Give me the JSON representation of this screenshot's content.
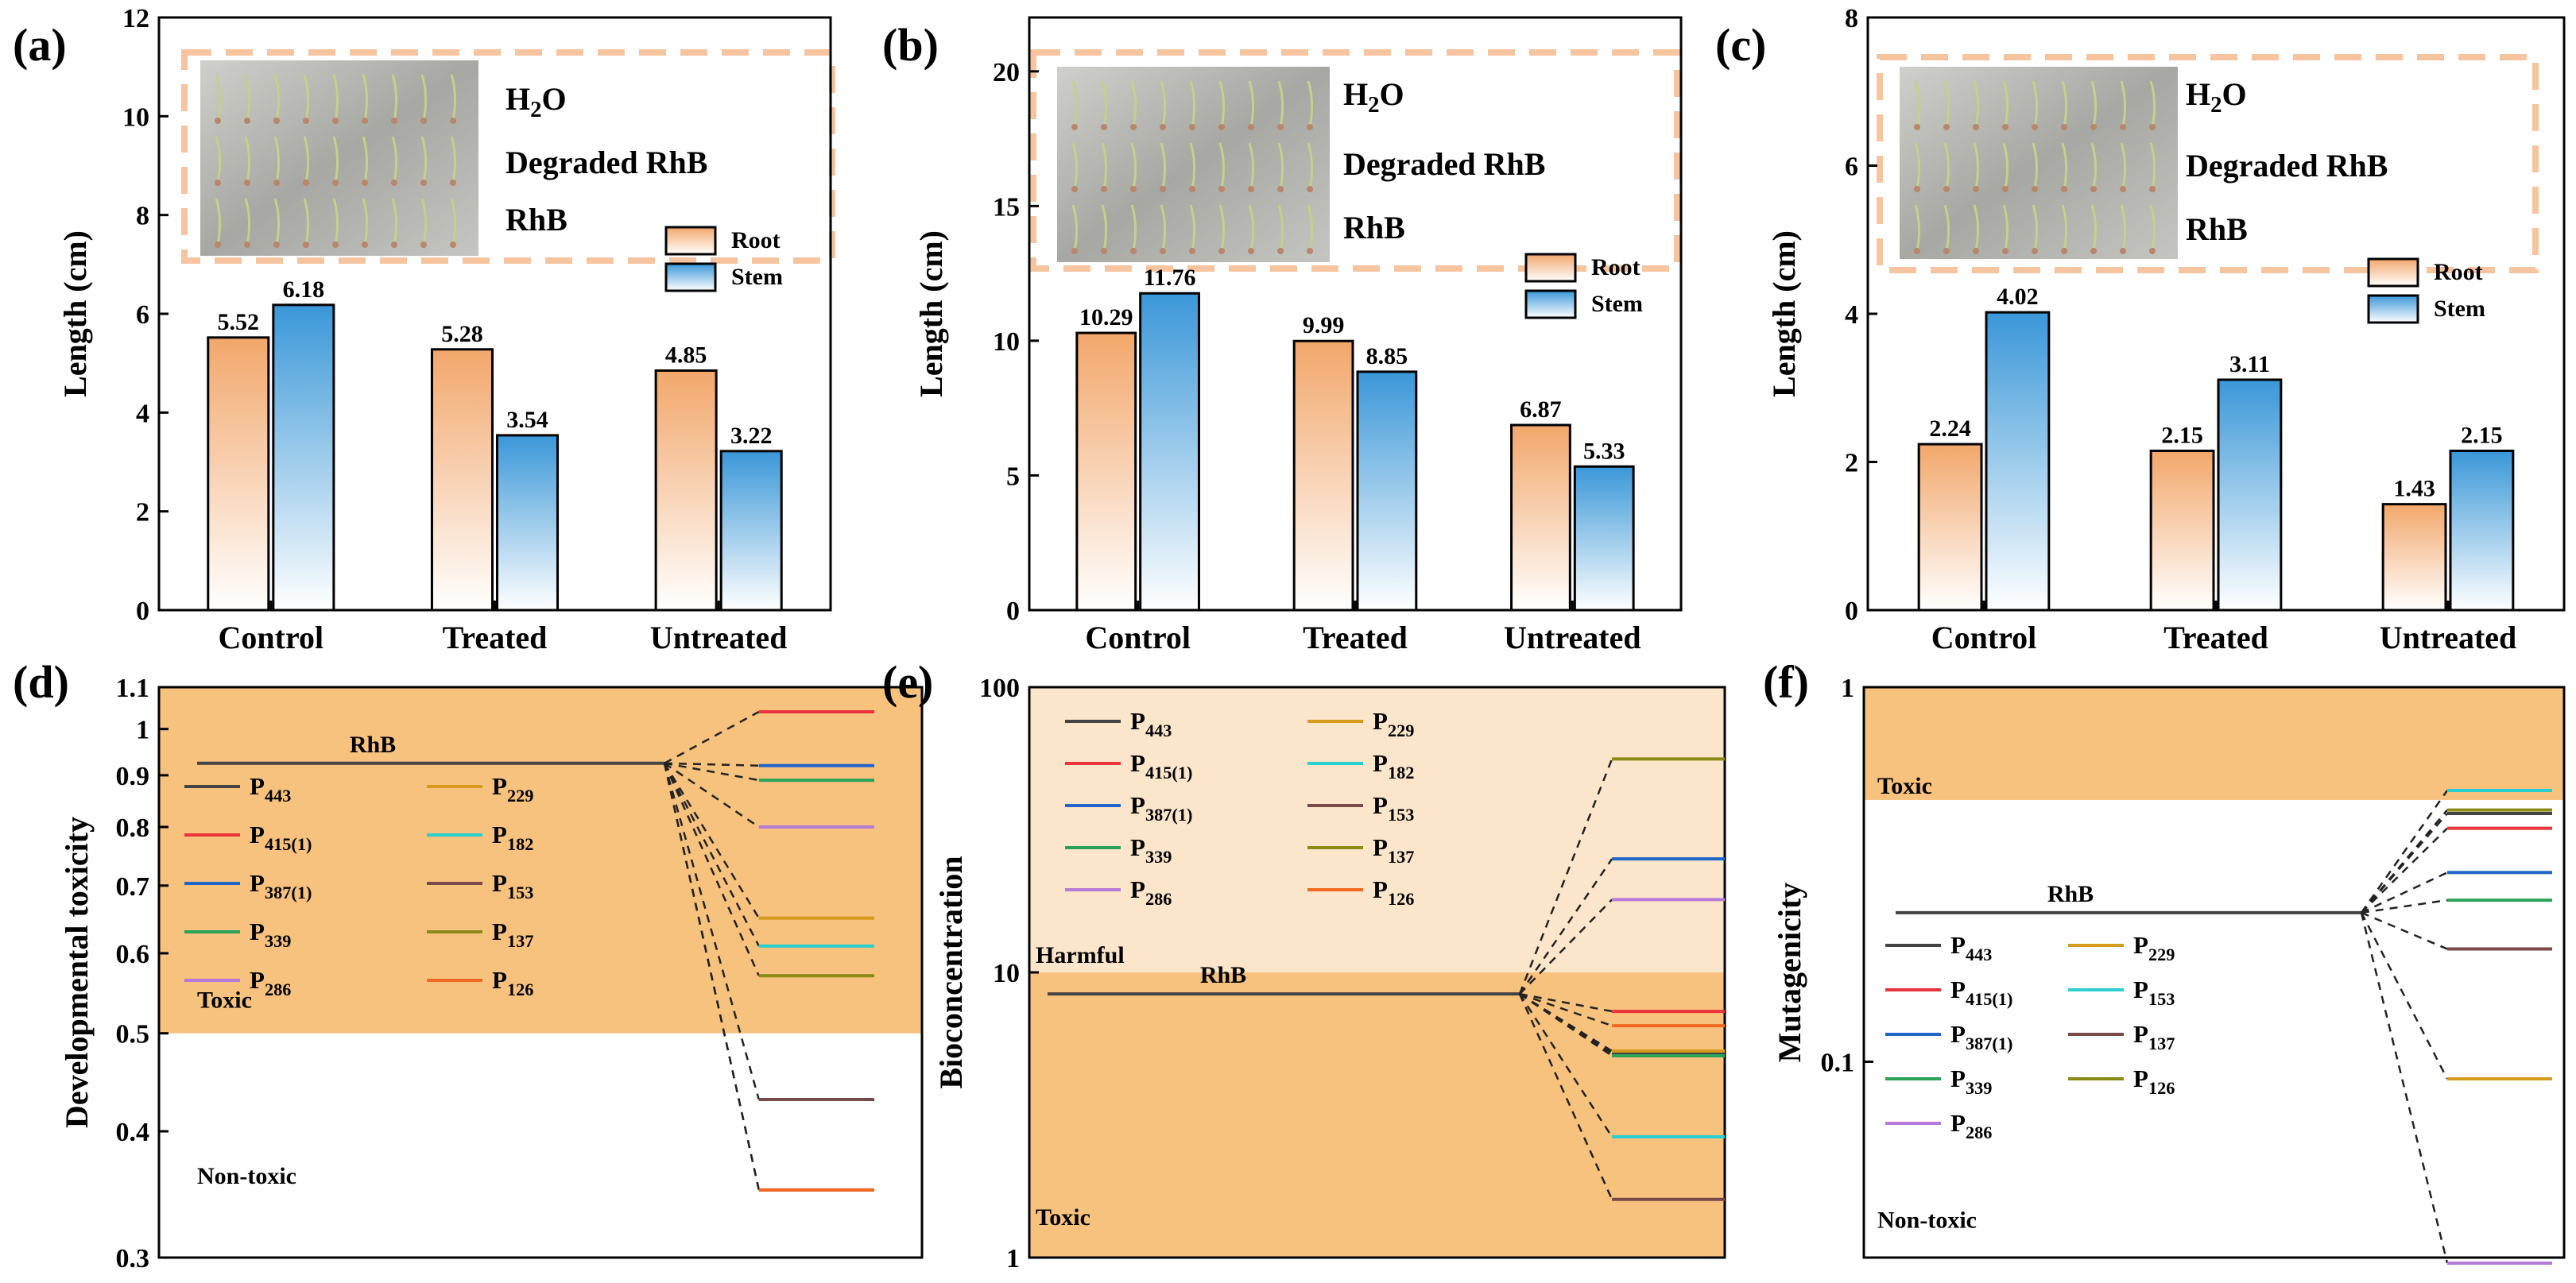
{
  "colors": {
    "root_top": "#f2a76b",
    "root_bottom": "#ffffff",
    "stem_top": "#3a97d8",
    "stem_bottom": "#ffffff",
    "toxic_zone": "#f7c17e",
    "harmful_zone": "#fbe6cb",
    "inset_border": "#f7c4a0"
  },
  "chart_data": [
    {
      "id": "a",
      "panel_label": "(a)",
      "type": "bar",
      "categories": [
        "Control",
        "Treated",
        "Untreated"
      ],
      "series": [
        {
          "name": "Root",
          "values": [
            5.52,
            5.28,
            4.85
          ]
        },
        {
          "name": "Stem",
          "values": [
            6.18,
            3.54,
            3.22
          ]
        }
      ],
      "value_labels": {
        "Root": [
          "5.52",
          "5.28",
          "4.85"
        ],
        "Stem": [
          "6.18",
          "3.54",
          "3.22"
        ]
      },
      "ylabel": "Length (cm)",
      "ylim": [
        0,
        12
      ],
      "yticks": [
        0,
        2,
        4,
        6,
        8,
        10,
        12
      ],
      "ytick_labels": [
        "0",
        "2",
        "4",
        "6",
        "8",
        "10",
        "12"
      ],
      "legend": {
        "position": "right",
        "entries": [
          "Root",
          "Stem"
        ]
      },
      "inset": {
        "labels": [
          "Degraded RhB",
          "RhB"
        ],
        "h2o": {
          "base": "H",
          "sub": "2",
          "tail": "O"
        },
        "photo": "seedling-photo"
      }
    },
    {
      "id": "b",
      "panel_label": "(b)",
      "type": "bar",
      "categories": [
        "Control",
        "Treated",
        "Untreated"
      ],
      "series": [
        {
          "name": "Root",
          "values": [
            10.29,
            9.99,
            6.87
          ]
        },
        {
          "name": "Stem",
          "values": [
            11.76,
            8.85,
            5.33
          ]
        }
      ],
      "value_labels": {
        "Root": [
          "10.29",
          "9.99",
          "6.87"
        ],
        "Stem": [
          "11.76",
          "8.85",
          "5.33"
        ]
      },
      "ylabel": "Length (cm)",
      "ylim": [
        0,
        22
      ],
      "yticks": [
        0,
        5,
        10,
        15,
        20
      ],
      "ytick_labels": [
        "0",
        "5",
        "10",
        "15",
        "20"
      ],
      "legend": {
        "position": "right",
        "entries": [
          "Root",
          "Stem"
        ]
      },
      "inset": {
        "labels": [
          "Degraded RhB",
          "RhB"
        ],
        "h2o": {
          "base": "H",
          "sub": "2",
          "tail": "O"
        },
        "photo": "seedling-photo"
      }
    },
    {
      "id": "c",
      "panel_label": "(c)",
      "type": "bar",
      "categories": [
        "Control",
        "Treated",
        "Untreated"
      ],
      "series": [
        {
          "name": "Root",
          "values": [
            2.24,
            2.15,
            1.43
          ]
        },
        {
          "name": "Stem",
          "values": [
            4.02,
            3.11,
            2.15
          ]
        }
      ],
      "value_labels": {
        "Root": [
          "2.24",
          "2.15",
          "1.43"
        ],
        "Stem": [
          "4.02",
          "3.11",
          "2.15"
        ]
      },
      "ylabel": "Length (cm)",
      "ylim": [
        0,
        8
      ],
      "yticks": [
        0,
        2,
        4,
        6,
        8
      ],
      "ytick_labels": [
        "0",
        "2",
        "4",
        "6",
        "8"
      ],
      "legend": {
        "position": "right",
        "entries": [
          "Root",
          "Stem"
        ]
      },
      "inset": {
        "labels": [
          "Degraded RhB",
          "RhB"
        ],
        "h2o": {
          "base": "H",
          "sub": "2",
          "tail": "O"
        },
        "photo": "seedling-photo"
      }
    },
    {
      "id": "d",
      "panel_label": "(d)",
      "type": "line",
      "yscale": "log",
      "ylabel": "Developmental toxicity",
      "ylim": [
        0.3,
        1.1
      ],
      "yticks": [
        0.3,
        0.4,
        0.5,
        0.6,
        0.7,
        0.8,
        0.9,
        1.0,
        1.1
      ],
      "ytick_labels": [
        "0.3",
        "0.4",
        "0.5",
        "0.6",
        "0.7",
        "0.8",
        "0.9",
        "1",
        "1.1"
      ],
      "zones": [
        {
          "label": "Toxic",
          "from": 0.5,
          "to": 1.1,
          "color": "toxic_zone"
        }
      ],
      "zone_labels": [
        "Toxic",
        "Non-toxic"
      ],
      "zone_label_values": [
        0.53,
        0.355
      ],
      "reference": {
        "label": "RhB",
        "value": 0.925
      },
      "products": [
        {
          "base": "P",
          "sub": "443",
          "value": 0.35,
          "color": "#444444"
        },
        {
          "base": "P",
          "sub": "415(1)",
          "value": 1.04,
          "color": "#e8343a"
        },
        {
          "base": "P",
          "sub": "387(1)",
          "value": 0.92,
          "color": "#2265c8"
        },
        {
          "base": "P",
          "sub": "339",
          "value": 0.89,
          "color": "#2aa35a"
        },
        {
          "base": "P",
          "sub": "286",
          "value": 0.8,
          "color": "#b67ad8"
        },
        {
          "base": "P",
          "sub": "229",
          "value": 0.65,
          "color": "#d69a1c"
        },
        {
          "base": "P",
          "sub": "182",
          "value": 0.61,
          "color": "#2ccfcf"
        },
        {
          "base": "P",
          "sub": "153",
          "value": 0.43,
          "color": "#7a4a4a"
        },
        {
          "base": "P",
          "sub": "137",
          "value": 0.57,
          "color": "#8a8a16"
        },
        {
          "base": "P",
          "sub": "126",
          "value": 0.35,
          "color": "#f26a21"
        }
      ]
    },
    {
      "id": "e",
      "panel_label": "(e)",
      "type": "line",
      "yscale": "log",
      "ylabel": "Bioconcentration",
      "ylim": [
        1,
        100
      ],
      "yticks": [
        1,
        10,
        100
      ],
      "ytick_labels": [
        "1",
        "10",
        "100"
      ],
      "zones": [
        {
          "label": "Harmful",
          "from": 10,
          "to": 100,
          "color": "harmful_zone"
        },
        {
          "label": "Toxic",
          "from": 1,
          "to": 10,
          "color": "toxic_zone"
        }
      ],
      "zone_labels": [
        "Harmful",
        "Toxic"
      ],
      "zone_label_values": [
        10.8,
        1.3
      ],
      "reference": {
        "label": "RhB",
        "value": 8.4
      },
      "products": [
        {
          "base": "P",
          "sub": "443",
          "value": 5.2,
          "color": "#444444"
        },
        {
          "base": "P",
          "sub": "415(1)",
          "value": 7.3,
          "color": "#e8343a"
        },
        {
          "base": "P",
          "sub": "387(1)",
          "value": 25,
          "color": "#2265c8"
        },
        {
          "base": "P",
          "sub": "339",
          "value": 5.1,
          "color": "#2aa35a"
        },
        {
          "base": "P",
          "sub": "286",
          "value": 18,
          "color": "#b67ad8"
        },
        {
          "base": "P",
          "sub": "229",
          "value": 5.3,
          "color": "#d69a1c"
        },
        {
          "base": "P",
          "sub": "182",
          "value": 2.65,
          "color": "#2ccfcf"
        },
        {
          "base": "P",
          "sub": "153",
          "value": 1.6,
          "color": "#7a4a4a"
        },
        {
          "base": "P",
          "sub": "137",
          "value": 56,
          "color": "#8a8a16"
        },
        {
          "base": "P",
          "sub": "126",
          "value": 6.5,
          "color": "#f26a21"
        }
      ]
    },
    {
      "id": "f",
      "panel_label": "(f)",
      "type": "line",
      "yscale": "log",
      "ylabel": "Mutagenicity",
      "ylim": [
        0.03,
        1
      ],
      "yticks": [
        0.1,
        1
      ],
      "ytick_labels": [
        "0.1",
        "1"
      ],
      "zones": [
        {
          "label": "Toxic",
          "from": 0.5,
          "to": 1,
          "color": "toxic_zone"
        }
      ],
      "zone_labels": [
        "Toxic",
        "Non-toxic"
      ],
      "zone_label_values": [
        0.52,
        0.036
      ],
      "reference": {
        "label": "RhB",
        "value": 0.25
      },
      "products": [
        {
          "base": "P",
          "sub": "443",
          "value": 0.46,
          "color": "#444444"
        },
        {
          "base": "P",
          "sub": "415(1)",
          "value": 0.42,
          "color": "#e8343a"
        },
        {
          "base": "P",
          "sub": "387(1)",
          "value": 0.32,
          "color": "#2265c8"
        },
        {
          "base": "P",
          "sub": "339",
          "value": 0.27,
          "color": "#2aa35a"
        },
        {
          "base": "P",
          "sub": "286",
          "value": 0.029,
          "color": "#b67ad8"
        },
        {
          "base": "P",
          "sub": "229",
          "value": 0.09,
          "color": "#d69a1c"
        },
        {
          "base": "P",
          "sub": "153",
          "value": 0.53,
          "color": "#2ccfcf"
        },
        {
          "base": "P",
          "sub": "137",
          "value": 0.2,
          "color": "#7a4a4a"
        },
        {
          "base": "P",
          "sub": "126",
          "value": 0.47,
          "color": "#8a8a16"
        }
      ]
    }
  ]
}
